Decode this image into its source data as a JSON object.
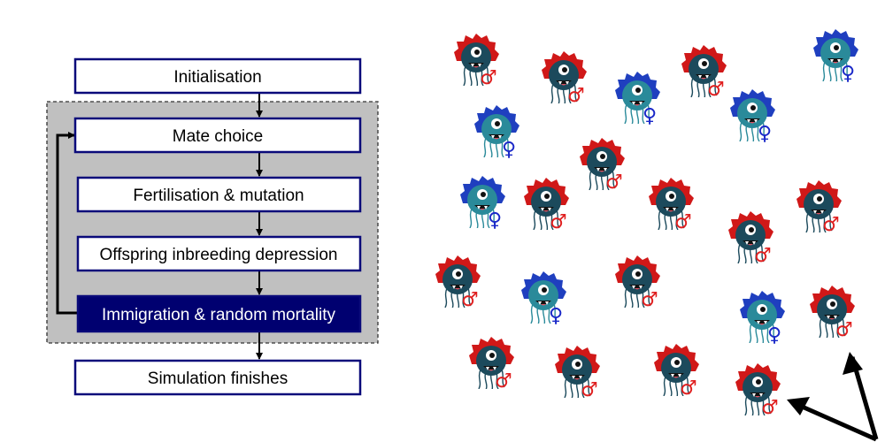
{
  "flowchart": {
    "steps": [
      {
        "id": "initialisation",
        "label": "Initialisation",
        "highlighted": false
      },
      {
        "id": "mate-choice",
        "label": "Mate choice",
        "highlighted": false
      },
      {
        "id": "fertilisation",
        "label": "Fertilisation & mutation",
        "highlighted": false
      },
      {
        "id": "inbreeding",
        "label": "Offspring inbreeding depression",
        "highlighted": false
      },
      {
        "id": "immigration",
        "label": "Immigration & random mortality",
        "highlighted": true
      },
      {
        "id": "finish",
        "label": "Simulation finishes",
        "highlighted": false
      }
    ],
    "colors": {
      "box_border": "#0a0a7a",
      "highlight_fill": "#000070",
      "loop_fill": "#c0c0c0",
      "arrow": "#000000"
    }
  },
  "population": {
    "symbols": {
      "male": "♂",
      "female": "♀"
    },
    "colors": {
      "male_hair": "#d01818",
      "female_hair": "#1f3fbf",
      "male_body": "#1c4a5c",
      "female_body": "#2a8a9a",
      "male_symbol": "#e02020",
      "female_symbol": "#1a28c8"
    },
    "individuals": [
      {
        "sex": "male"
      },
      {
        "sex": "male"
      },
      {
        "sex": "female"
      },
      {
        "sex": "male"
      },
      {
        "sex": "female"
      },
      {
        "sex": "female"
      },
      {
        "sex": "female"
      },
      {
        "sex": "male"
      },
      {
        "sex": "female"
      },
      {
        "sex": "male"
      },
      {
        "sex": "male"
      },
      {
        "sex": "male"
      },
      {
        "sex": "male"
      },
      {
        "sex": "male"
      },
      {
        "sex": "female"
      },
      {
        "sex": "male"
      },
      {
        "sex": "female"
      },
      {
        "sex": "male"
      },
      {
        "sex": "male"
      },
      {
        "sex": "male"
      },
      {
        "sex": "male"
      },
      {
        "sex": "male"
      }
    ]
  }
}
